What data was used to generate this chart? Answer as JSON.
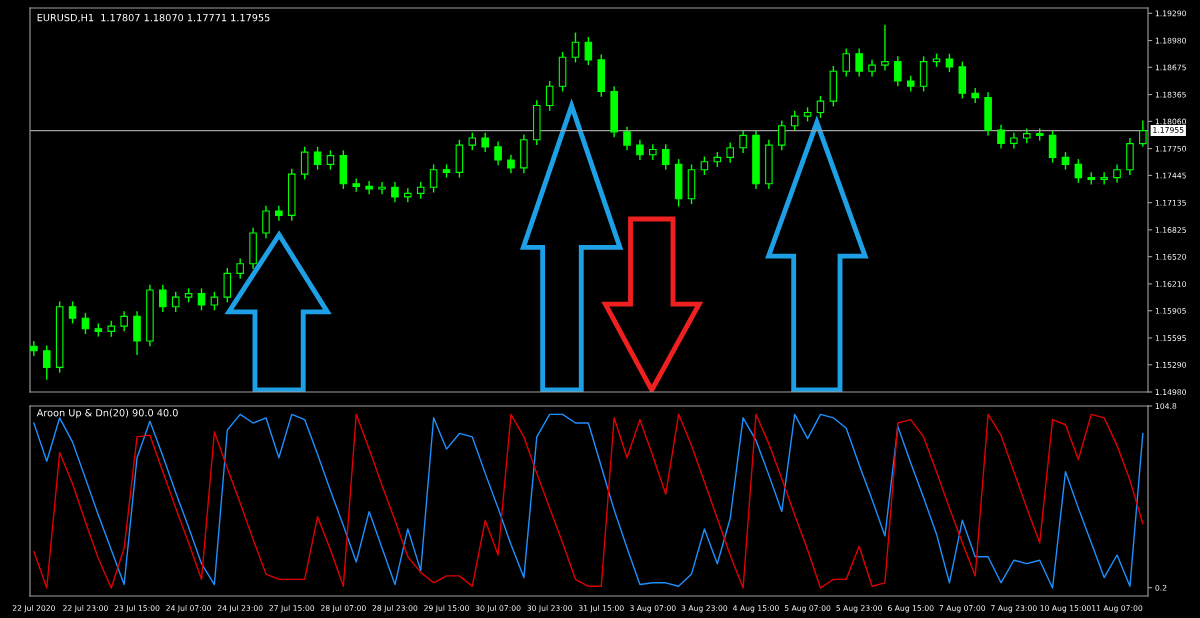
{
  "chart_data": [
    {
      "type": "candlestick",
      "title": "EURUSD,H1  1.17807 1.18070 1.17771 1.17955",
      "color": "#00ff00",
      "tick_labels": "y",
      "grid": false,
      "categories": [
        "22 Jul 2020",
        null,
        null,
        null,
        "22 Jul 23:00",
        null,
        null,
        null,
        "23 Jul 15:00",
        null,
        null,
        null,
        "24 Jul 07:00",
        null,
        null,
        null,
        "24 Jul 23:00",
        null,
        null,
        null,
        "27 Jul 15:00",
        null,
        null,
        null,
        "28 Jul 07:00",
        null,
        null,
        null,
        "28 Jul 23:00",
        null,
        null,
        null,
        "29 Jul 15:00",
        null,
        null,
        null,
        "30 Jul 07:00",
        null,
        null,
        null,
        "30 Jul 23:00",
        null,
        null,
        null,
        "31 Jul 15:00",
        null,
        null,
        null,
        "3 Aug 07:00",
        null,
        null,
        null,
        "3 Aug 23:00",
        null,
        null,
        null,
        "4 Aug 15:00",
        null,
        null,
        null,
        "5 Aug 07:00",
        null,
        null,
        null,
        "5 Aug 23:00",
        null,
        null,
        null,
        "6 Aug 15:00",
        null,
        null,
        null,
        "7 Aug 07:00",
        null,
        null,
        null,
        "7 Aug 23:00",
        null,
        null,
        null,
        "10 Aug 15:00",
        null,
        null,
        null,
        "11 Aug 07:00",
        null,
        null
      ],
      "ohlc": [
        [
          1.155,
          1.1556,
          1.1539,
          1.1545
        ],
        [
          1.1545,
          1.1551,
          1.1512,
          1.1526
        ],
        [
          1.1526,
          1.1601,
          1.152,
          1.1595
        ],
        [
          1.1595,
          1.1601,
          1.1576,
          1.1582
        ],
        [
          1.1582,
          1.1588,
          1.1564,
          1.157
        ],
        [
          1.157,
          1.1576,
          1.1561,
          1.1567
        ],
        [
          1.1567,
          1.1579,
          1.1561,
          1.1573
        ],
        [
          1.1573,
          1.159,
          1.1567,
          1.1584
        ],
        [
          1.1584,
          1.159,
          1.154,
          1.1556
        ],
        [
          1.1556,
          1.162,
          1.155,
          1.1614
        ],
        [
          1.1614,
          1.162,
          1.1589,
          1.1595
        ],
        [
          1.1595,
          1.1612,
          1.1589,
          1.1606
        ],
        [
          1.1606,
          1.1616,
          1.16,
          1.161
        ],
        [
          1.161,
          1.1616,
          1.1591,
          1.1597
        ],
        [
          1.1597,
          1.1612,
          1.1591,
          1.1606
        ],
        [
          1.1606,
          1.1639,
          1.16,
          1.1633
        ],
        [
          1.1633,
          1.165,
          1.1627,
          1.1644
        ],
        [
          1.1644,
          1.1685,
          1.1638,
          1.1679
        ],
        [
          1.1679,
          1.171,
          1.1673,
          1.1704
        ],
        [
          1.1704,
          1.171,
          1.1693,
          1.1699
        ],
        [
          1.1699,
          1.1752,
          1.1693,
          1.1746
        ],
        [
          1.1746,
          1.1777,
          1.174,
          1.1771
        ],
        [
          1.1771,
          1.1777,
          1.1751,
          1.1757
        ],
        [
          1.1757,
          1.1773,
          1.1751,
          1.1767
        ],
        [
          1.1767,
          1.1773,
          1.1729,
          1.1735
        ],
        [
          1.1735,
          1.1741,
          1.1726,
          1.1732
        ],
        [
          1.1732,
          1.1738,
          1.1723,
          1.1729
        ],
        [
          1.1729,
          1.1737,
          1.1723,
          1.1731
        ],
        [
          1.1731,
          1.1737,
          1.1714,
          1.172
        ],
        [
          1.172,
          1.173,
          1.1714,
          1.1724
        ],
        [
          1.1724,
          1.1737,
          1.1718,
          1.1731
        ],
        [
          1.1731,
          1.1757,
          1.1725,
          1.1751
        ],
        [
          1.1751,
          1.1757,
          1.1742,
          1.1748
        ],
        [
          1.1748,
          1.1785,
          1.1742,
          1.1779
        ],
        [
          1.1779,
          1.1793,
          1.1773,
          1.1787
        ],
        [
          1.1787,
          1.1793,
          1.1771,
          1.1777
        ],
        [
          1.1777,
          1.1783,
          1.1756,
          1.1762
        ],
        [
          1.1762,
          1.1768,
          1.1747,
          1.1753
        ],
        [
          1.1753,
          1.1791,
          1.1747,
          1.1785
        ],
        [
          1.1785,
          1.183,
          1.1779,
          1.1824
        ],
        [
          1.1824,
          1.1852,
          1.1818,
          1.1846
        ],
        [
          1.1846,
          1.1885,
          1.184,
          1.1879
        ],
        [
          1.1879,
          1.1907,
          1.1873,
          1.1896
        ],
        [
          1.1896,
          1.1902,
          1.187,
          1.1876
        ],
        [
          1.1876,
          1.1882,
          1.1834,
          1.184
        ],
        [
          1.184,
          1.1846,
          1.1788,
          1.1794
        ],
        [
          1.1794,
          1.18,
          1.1773,
          1.1779
        ],
        [
          1.1779,
          1.1785,
          1.1762,
          1.1768
        ],
        [
          1.1768,
          1.178,
          1.1762,
          1.1774
        ],
        [
          1.1774,
          1.178,
          1.1751,
          1.1757
        ],
        [
          1.1757,
          1.1763,
          1.1709,
          1.1718
        ],
        [
          1.1718,
          1.1757,
          1.1712,
          1.1751
        ],
        [
          1.1751,
          1.1766,
          1.1745,
          1.176
        ],
        [
          1.176,
          1.1771,
          1.1754,
          1.1765
        ],
        [
          1.1765,
          1.1782,
          1.1759,
          1.1776
        ],
        [
          1.1776,
          1.1796,
          1.177,
          1.179
        ],
        [
          1.179,
          1.1796,
          1.1729,
          1.1735
        ],
        [
          1.1735,
          1.1785,
          1.1729,
          1.1779
        ],
        [
          1.1779,
          1.1807,
          1.1773,
          1.1801
        ],
        [
          1.1801,
          1.1818,
          1.1795,
          1.1812
        ],
        [
          1.1812,
          1.1822,
          1.1806,
          1.1816
        ],
        [
          1.1816,
          1.1835,
          1.181,
          1.1829
        ],
        [
          1.1829,
          1.1869,
          1.1823,
          1.1863
        ],
        [
          1.1863,
          1.1889,
          1.1857,
          1.1883
        ],
        [
          1.1883,
          1.1889,
          1.1857,
          1.1863
        ],
        [
          1.1863,
          1.1876,
          1.1857,
          1.187
        ],
        [
          1.187,
          1.1916,
          1.1864,
          1.1874
        ],
        [
          1.1874,
          1.188,
          1.1846,
          1.1852
        ],
        [
          1.1852,
          1.1858,
          1.184,
          1.1846
        ],
        [
          1.1846,
          1.188,
          1.184,
          1.1874
        ],
        [
          1.1874,
          1.1883,
          1.1868,
          1.1877
        ],
        [
          1.1877,
          1.1883,
          1.1862,
          1.1868
        ],
        [
          1.1868,
          1.1874,
          1.1832,
          1.1838
        ],
        [
          1.1838,
          1.1844,
          1.1827,
          1.1833
        ],
        [
          1.1833,
          1.1839,
          1.179,
          1.1796
        ],
        [
          1.1796,
          1.1802,
          1.1775,
          1.1781
        ],
        [
          1.1781,
          1.1793,
          1.1775,
          1.1787
        ],
        [
          1.1787,
          1.1798,
          1.1781,
          1.1792
        ],
        [
          1.1792,
          1.1798,
          1.1784,
          1.179
        ],
        [
          1.179,
          1.1796,
          1.1759,
          1.1765
        ],
        [
          1.1765,
          1.1771,
          1.1751,
          1.1757
        ],
        [
          1.1757,
          1.1763,
          1.1736,
          1.1742
        ],
        [
          1.1742,
          1.1748,
          1.1734,
          1.174
        ],
        [
          1.174,
          1.1748,
          1.1734,
          1.1742
        ],
        [
          1.1742,
          1.1757,
          1.1736,
          1.1751
        ],
        [
          1.1751,
          1.1787,
          1.1745,
          1.17807
        ],
        [
          1.17807,
          1.1807,
          1.17771,
          1.17955
        ]
      ],
      "ylim": [
        1.1498,
        1.1935
      ],
      "yticks": [
        {
          "value": 1.1929,
          "label": "1.19290"
        },
        {
          "value": 1.1898,
          "label": "1.18980"
        },
        {
          "value": 1.18675,
          "label": "1.18675"
        },
        {
          "value": 1.18365,
          "label": "1.18365"
        },
        {
          "value": 1.1806,
          "label": "1.18060"
        },
        {
          "value": 1.1775,
          "label": "1.17750"
        },
        {
          "value": 1.17445,
          "label": "1.17445"
        },
        {
          "value": 1.17135,
          "label": "1.17135"
        },
        {
          "value": 1.16825,
          "label": "1.16825"
        },
        {
          "value": 1.1652,
          "label": "1.16520"
        },
        {
          "value": 1.1621,
          "label": "1.16210"
        },
        {
          "value": 1.15905,
          "label": "1.15905"
        },
        {
          "value": 1.15595,
          "label": "1.15595"
        },
        {
          "value": 1.1529,
          "label": "1.15290"
        },
        {
          "value": 1.1498,
          "label": "1.14980"
        }
      ],
      "ref_lines": [
        {
          "axis": "y",
          "value": 1.17955,
          "label": "1.17955",
          "color": "#a0a0a0",
          "line_style": "solid"
        }
      ]
    },
    {
      "type": "line",
      "title": "Aroon Up & Dn(20) 90.0 40.0",
      "grid": false,
      "series": [
        {
          "color": "#1e90ff",
          "values": [
            95,
            73,
            98,
            84,
            63,
            42,
            22,
            2,
            75,
            96,
            76,
            55,
            35,
            14,
            2,
            91,
            100,
            95,
            98,
            75,
            100,
            97,
            77,
            56,
            36,
            15,
            44,
            23,
            2,
            34,
            10,
            98,
            80,
            89,
            87,
            66,
            46,
            25,
            6,
            87,
            100,
            100,
            95,
            95,
            70,
            45,
            23,
            2,
            3,
            3,
            1,
            8,
            34,
            14,
            40,
            98,
            85,
            65,
            44,
            100,
            86,
            100,
            98,
            92,
            71,
            51,
            30,
            93,
            72,
            52,
            31,
            3,
            39,
            18,
            18,
            3,
            16,
            14,
            16,
            0,
            67,
            46,
            26,
            6,
            19,
            1,
            89
          ]
        },
        {
          "color": "#e00000",
          "values": [
            21,
            0,
            78,
            60,
            38,
            17,
            0,
            23,
            87,
            88,
            67,
            46,
            26,
            5,
            90,
            69,
            49,
            28,
            8,
            5,
            5,
            5,
            41,
            22,
            1,
            100,
            80,
            59,
            39,
            18,
            9,
            3,
            7,
            7,
            1,
            39,
            19,
            100,
            87,
            66,
            46,
            26,
            5,
            1,
            1,
            98,
            75,
            97,
            76,
            54,
            100,
            82,
            61,
            40,
            19,
            0,
            100,
            83,
            63,
            42,
            22,
            0,
            5,
            5,
            24,
            1,
            3,
            95,
            97,
            87,
            67,
            46,
            26,
            7,
            100,
            88,
            67,
            46,
            26,
            97,
            94,
            74,
            100,
            98,
            82,
            62,
            37
          ]
        }
      ],
      "ylim": [
        -4.6,
        104.8
      ],
      "yticks": [
        104.8,
        0.2
      ]
    }
  ]
}
